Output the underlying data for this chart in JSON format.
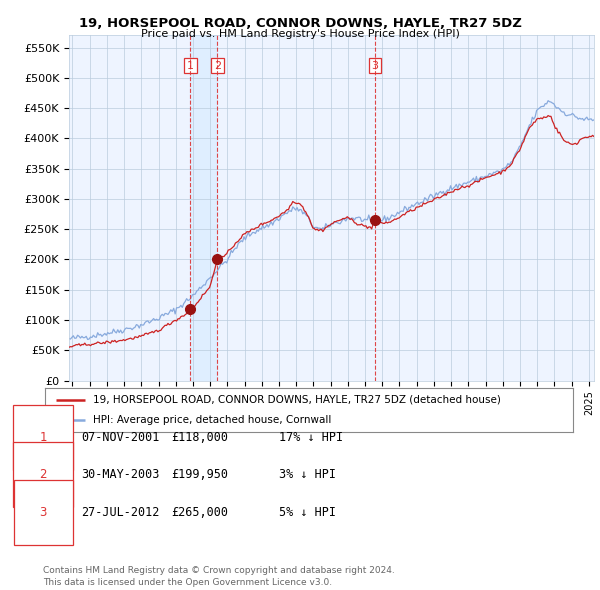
{
  "title": "19, HORSEPOOL ROAD, CONNOR DOWNS, HAYLE, TR27 5DZ",
  "subtitle": "Price paid vs. HM Land Registry's House Price Index (HPI)",
  "ylabel_ticks": [
    "£0",
    "£50K",
    "£100K",
    "£150K",
    "£200K",
    "£250K",
    "£300K",
    "£350K",
    "£400K",
    "£450K",
    "£500K",
    "£550K"
  ],
  "ytick_values": [
    0,
    50000,
    100000,
    150000,
    200000,
    250000,
    300000,
    350000,
    400000,
    450000,
    500000,
    550000
  ],
  "ylim": [
    0,
    570000
  ],
  "xlim_start": 1994.8,
  "xlim_end": 2025.3,
  "hpi_color": "#88aadd",
  "price_color": "#cc2222",
  "marker_color": "#991111",
  "vline_color": "#dd3333",
  "shade_color": "#ddeeff",
  "transaction_dates": [
    2001.854,
    2003.413,
    2012.572
  ],
  "transaction_prices": [
    118000,
    199950,
    265000
  ],
  "transaction_labels": [
    "1",
    "2",
    "3"
  ],
  "legend_price_label": "19, HORSEPOOL ROAD, CONNOR DOWNS, HAYLE, TR27 5DZ (detached house)",
  "legend_hpi_label": "HPI: Average price, detached house, Cornwall",
  "table_rows": [
    [
      "1",
      "07-NOV-2001",
      "£118,000",
      "17% ↓ HPI"
    ],
    [
      "2",
      "30-MAY-2003",
      "£199,950",
      "3% ↓ HPI"
    ],
    [
      "3",
      "27-JUL-2012",
      "£265,000",
      "5% ↓ HPI"
    ]
  ],
  "footnote": "Contains HM Land Registry data © Crown copyright and database right 2024.\nThis data is licensed under the Open Government Licence v3.0.",
  "background_color": "#ffffff",
  "chart_bg_color": "#eef4ff",
  "grid_color": "#bbccdd"
}
